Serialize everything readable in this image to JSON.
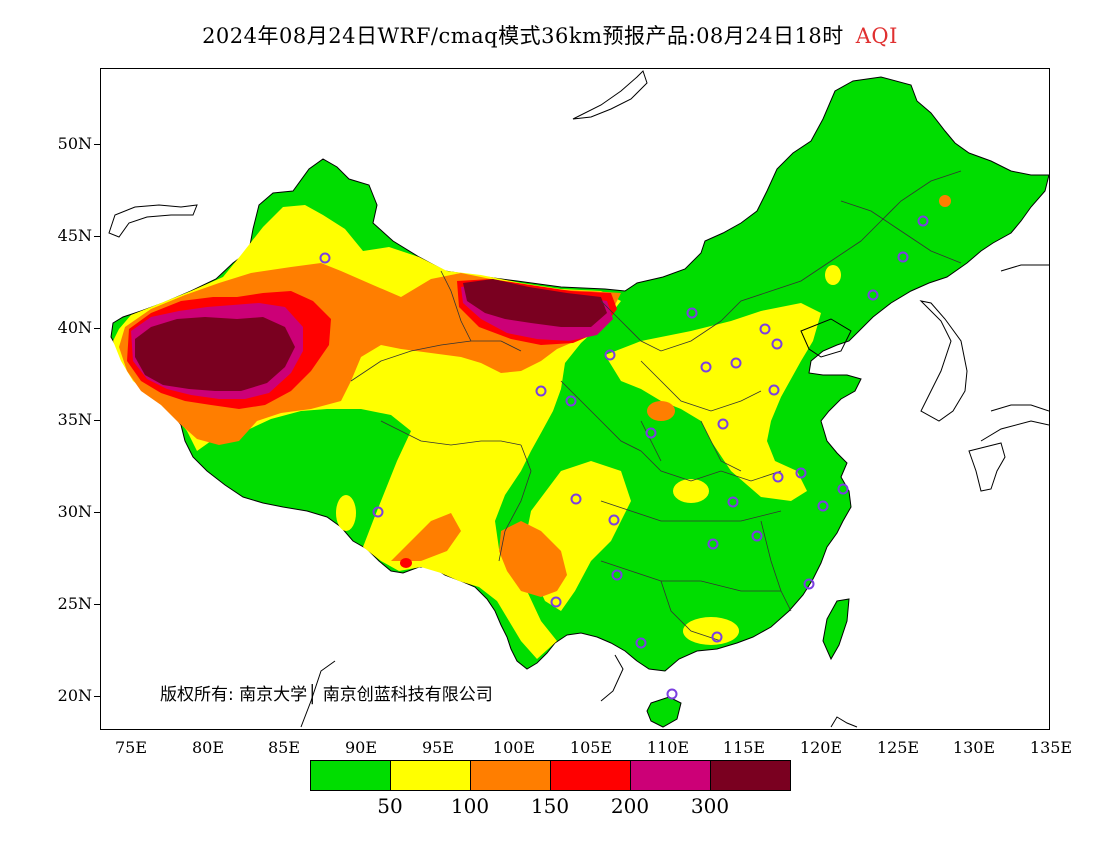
{
  "title": {
    "main": "2024年08月24日WRF/cmaq模式36km预报产品:08月24日18时",
    "variable": "AQI"
  },
  "colors": {
    "good": "#00dd00",
    "moderate": "#ffff00",
    "usg": "#ff7e00",
    "unhealthy": "#ff0000",
    "very_unhealthy": "#cc0077",
    "hazardous": "#7a0020",
    "city_marker": "#7b3fe0"
  },
  "axes": {
    "y_ticks": [
      "50N",
      "45N",
      "40N",
      "35N",
      "30N",
      "25N",
      "20N"
    ],
    "x_ticks": [
      "75E",
      "80E",
      "85E",
      "90E",
      "95E",
      "100E",
      "105E",
      "110E",
      "115E",
      "120E",
      "125E",
      "130E",
      "135E"
    ]
  },
  "legend": {
    "labels": [
      "50",
      "100",
      "150",
      "200",
      "300"
    ],
    "swatch_colors": [
      "#00dd00",
      "#ffff00",
      "#ff7e00",
      "#ff0000",
      "#cc0077",
      "#7a0020"
    ]
  },
  "copyright": "版权所有: 南京大学│ 南京创蓝科技有限公司",
  "icons": {
    "city_marker": "circle-marker-icon"
  }
}
